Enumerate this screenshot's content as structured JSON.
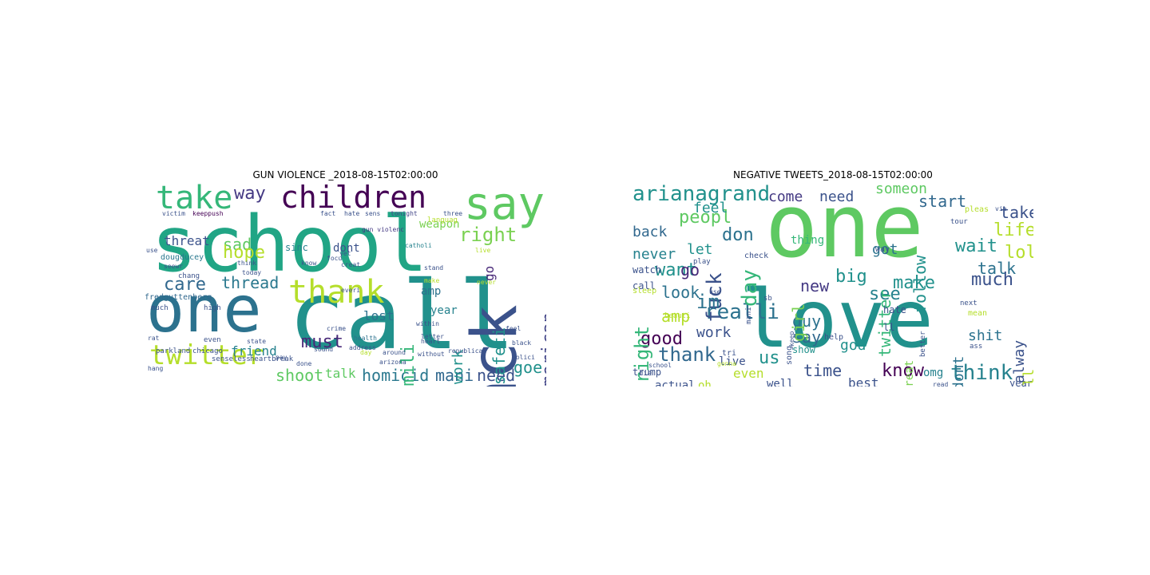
{
  "figure": {
    "panels": [
      {
        "title": "GUN VIOLENCE _2018-08-15T02:00:00",
        "words": [
          {
            "t": "school",
            "c": "#21a585"
          },
          {
            "t": "call",
            "c": "#21918c"
          },
          {
            "t": "one",
            "c": "#2c728e"
          },
          {
            "t": "jack",
            "c": "#3b528b"
          },
          {
            "t": "children",
            "c": "#440154"
          },
          {
            "t": "say",
            "c": "#5ec962"
          },
          {
            "t": "take",
            "c": "#35b779"
          },
          {
            "t": "twitter",
            "c": "#b5de2b"
          },
          {
            "t": "thank",
            "c": "#b5de2b"
          },
          {
            "t": "american",
            "c": "#414487"
          },
          {
            "t": "right",
            "c": "#7ad151"
          },
          {
            "t": "thread",
            "c": "#2a788e"
          },
          {
            "t": "care",
            "c": "#31688e"
          },
          {
            "t": "sad",
            "c": "#5ec962"
          },
          {
            "t": "hope",
            "c": "#b5de2b"
          },
          {
            "t": "way",
            "c": "#443983"
          },
          {
            "t": "threat",
            "c": "#3b528b"
          },
          {
            "t": "must",
            "c": "#482878"
          },
          {
            "t": "homicid",
            "c": "#2a788e"
          },
          {
            "t": "shoot",
            "c": "#5ec962"
          },
          {
            "t": "mani",
            "c": "#31688e"
          },
          {
            "t": "need",
            "c": "#3b528b"
          },
          {
            "t": "goe",
            "c": "#21918c"
          },
          {
            "t": "safeti",
            "c": "#21918c"
          },
          {
            "t": "work",
            "c": "#21918c"
          },
          {
            "t": "famili",
            "c": "#35b779"
          },
          {
            "t": "go",
            "c": "#482878"
          },
          {
            "t": "lost",
            "c": "#2c728e"
          },
          {
            "t": "friend",
            "c": "#26828e"
          },
          {
            "t": "talk",
            "c": "#5ec962"
          },
          {
            "t": "weapon",
            "c": "#7ad151"
          },
          {
            "t": "amp",
            "c": "#2c728e"
          },
          {
            "t": "year",
            "c": "#26828e"
          },
          {
            "t": "dont",
            "c": "#3b528b"
          },
          {
            "t": "sinc",
            "c": "#26828e"
          },
          {
            "t": "fredguttenberg",
            "c": "#31688e"
          },
          {
            "t": "dougducey",
            "c": "#2a788e"
          },
          {
            "t": "chang",
            "c": "#3b528b"
          },
          {
            "t": "victim",
            "c": "#3b528b"
          },
          {
            "t": "keeppush",
            "c": "#440154"
          },
          {
            "t": "tonight",
            "c": "#414487"
          },
          {
            "t": "gun violenc",
            "c": "#443983"
          },
          {
            "t": "focu",
            "c": "#3b528b"
          },
          {
            "t": "catholi",
            "c": "#26828e"
          },
          {
            "t": "crime",
            "c": "#3b528b"
          },
          {
            "t": "health",
            "c": "#2c728e"
          },
          {
            "t": "address",
            "c": "#3b528b"
          },
          {
            "t": "arizona",
            "c": "#3b528b"
          },
          {
            "t": "around",
            "c": "#3b528b"
          },
          {
            "t": "republican",
            "c": "#3b528b"
          },
          {
            "t": "chicago",
            "c": "#3b528b"
          },
          {
            "t": "parkland",
            "c": "#3b528b"
          },
          {
            "t": "heartbreak",
            "c": "#3b528b"
          },
          {
            "t": "senseless",
            "c": "#3b528b"
          },
          {
            "t": "train",
            "c": "#3b528b"
          },
          {
            "t": "feel",
            "c": "#3b528b"
          },
          {
            "t": "black",
            "c": "#3b528b"
          },
          {
            "t": "polici",
            "c": "#3b528b"
          },
          {
            "t": "letter",
            "c": "#3b528b"
          },
          {
            "t": "without",
            "c": "#3b528b"
          },
          {
            "t": "within",
            "c": "#3b528b"
          },
          {
            "t": "stand",
            "c": "#3b528b"
          },
          {
            "t": "today",
            "c": "#3b528b"
          },
          {
            "t": "think",
            "c": "#3b528b"
          },
          {
            "t": "high",
            "c": "#3b528b"
          },
          {
            "t": "even",
            "c": "#3b528b"
          },
          {
            "t": "much",
            "c": "#3b528b"
          },
          {
            "t": "state",
            "c": "#3b528b"
          },
          {
            "t": "sound",
            "c": "#3b528b"
          },
          {
            "t": "done",
            "c": "#3b528b"
          },
          {
            "t": "hate",
            "c": "#3b528b"
          },
          {
            "t": "fact",
            "c": "#3b528b"
          },
          {
            "t": "sens",
            "c": "#3b528b"
          },
          {
            "t": "three",
            "c": "#3b528b"
          },
          {
            "t": "yet",
            "c": "#3b528b"
          },
          {
            "t": "creat",
            "c": "#3b528b"
          },
          {
            "t": "everi",
            "c": "#3b528b"
          },
          {
            "t": "know",
            "c": "#3b528b"
          },
          {
            "t": "seewr",
            "c": "#3b528b"
          },
          {
            "t": "use",
            "c": "#3b528b"
          },
          {
            "t": "rat",
            "c": "#3b528b"
          },
          {
            "t": "hang",
            "c": "#3b528b"
          },
          {
            "t": "pay",
            "c": "#3b528b"
          },
          {
            "t": "heart",
            "c": "#3b528b"
          },
          {
            "t": "day",
            "c": "#b5de2b"
          },
          {
            "t": "languag",
            "c": "#b5de2b"
          },
          {
            "t": "live",
            "c": "#b5de2b"
          },
          {
            "t": "make",
            "c": "#b5de2b"
          },
          {
            "t": "never",
            "c": "#b5de2b"
          }
        ]
      },
      {
        "title": "NEGATIVE TWEETS_2018-08-15T02:00:00",
        "words": [
          {
            "t": "love",
            "c": "#21918c"
          },
          {
            "t": "one",
            "c": "#5ec962"
          },
          {
            "t": "arianagrand",
            "c": "#21918c"
          },
          {
            "t": "realli",
            "c": "#2c728e"
          },
          {
            "t": "thank",
            "c": "#31688e"
          },
          {
            "t": "good",
            "c": "#440154"
          },
          {
            "t": "amp",
            "c": "#b5de2b"
          },
          {
            "t": "fuck",
            "c": "#3b528b"
          },
          {
            "t": "day",
            "c": "#35b779"
          },
          {
            "t": "peopl",
            "c": "#5ec962"
          },
          {
            "t": "feel",
            "c": "#21918c"
          },
          {
            "t": "back",
            "c": "#31688e"
          },
          {
            "t": "never",
            "c": "#26828e"
          },
          {
            "t": "want",
            "c": "#21918c"
          },
          {
            "t": "look",
            "c": "#2c728e"
          },
          {
            "t": "right",
            "c": "#35b779"
          },
          {
            "t": "go",
            "c": "#482878"
          },
          {
            "t": "im",
            "c": "#2c728e"
          },
          {
            "t": "let",
            "c": "#21918c"
          },
          {
            "t": "don",
            "c": "#2c728e"
          },
          {
            "t": "come",
            "c": "#443983"
          },
          {
            "t": "need",
            "c": "#3b528b"
          },
          {
            "t": "someon",
            "c": "#5ec962"
          },
          {
            "t": "start",
            "c": "#31688e"
          },
          {
            "t": "take",
            "c": "#3b528b"
          },
          {
            "t": "life",
            "c": "#b5de2b"
          },
          {
            "t": "lol",
            "c": "#b5de2b"
          },
          {
            "t": "wait",
            "c": "#21918c"
          },
          {
            "t": "talk",
            "c": "#2c728e"
          },
          {
            "t": "much",
            "c": "#3b528b"
          },
          {
            "t": "make",
            "c": "#21918c"
          },
          {
            "t": "big",
            "c": "#21918c"
          },
          {
            "t": "see",
            "c": "#26828e"
          },
          {
            "t": "new",
            "c": "#443983"
          },
          {
            "t": "guy",
            "c": "#2c728e"
          },
          {
            "t": "say",
            "c": "#31688e"
          },
          {
            "t": "us",
            "c": "#21918c"
          },
          {
            "t": "time",
            "c": "#3b528b"
          },
          {
            "t": "know",
            "c": "#440154"
          },
          {
            "t": "best",
            "c": "#3b528b"
          },
          {
            "t": "think",
            "c": "#26828e"
          },
          {
            "t": "year",
            "c": "#3b528b"
          },
          {
            "t": "shit",
            "c": "#2c728e"
          },
          {
            "t": "still",
            "c": "#b5de2b"
          },
          {
            "t": "alway",
            "c": "#3b528b"
          },
          {
            "t": "dont",
            "c": "#2c728e"
          },
          {
            "t": "follow",
            "c": "#21918c"
          },
          {
            "t": "twitter",
            "c": "#35b779"
          },
          {
            "t": "got",
            "c": "#2c728e"
          },
          {
            "t": "girl",
            "c": "#7ad151"
          },
          {
            "t": "work",
            "c": "#3b528b"
          },
          {
            "t": "even",
            "c": "#b5de2b"
          },
          {
            "t": "actual",
            "c": "#3b528b"
          },
          {
            "t": "oh",
            "c": "#b5de2b"
          },
          {
            "t": "well",
            "c": "#3b528b"
          },
          {
            "t": "god",
            "c": "#21918c"
          },
          {
            "t": "omg",
            "c": "#26828e"
          },
          {
            "t": "great",
            "c": "#7ad151"
          },
          {
            "t": "hate",
            "c": "#3b528b"
          },
          {
            "t": "ll",
            "c": "#3b528b"
          },
          {
            "t": "trump",
            "c": "#3b528b"
          },
          {
            "t": "live",
            "c": "#3b528b"
          },
          {
            "t": "watch",
            "c": "#3b528b"
          },
          {
            "t": "call",
            "c": "#3b528b"
          },
          {
            "t": "show",
            "c": "#21918c"
          },
          {
            "t": "thing",
            "c": "#35b779"
          },
          {
            "t": "way",
            "c": "#3b528b"
          },
          {
            "t": "sb",
            "c": "#3b528b"
          },
          {
            "t": "mani",
            "c": "#3b528b"
          },
          {
            "t": "check",
            "c": "#3b528b"
          },
          {
            "t": "play",
            "c": "#3b528b"
          },
          {
            "t": "sleep",
            "c": "#b5de2b"
          },
          {
            "t": "school",
            "c": "#3b528b"
          },
          {
            "t": "help",
            "c": "#3b528b"
          },
          {
            "t": "keep",
            "c": "#3b528b"
          },
          {
            "t": "song",
            "c": "#3b528b"
          },
          {
            "t": "better",
            "c": "#3b528b"
          },
          {
            "t": "next",
            "c": "#3b528b"
          },
          {
            "t": "read",
            "c": "#3b528b"
          },
          {
            "t": "tweet",
            "c": "#3b528b"
          },
          {
            "t": "care",
            "c": "#3b528b"
          },
          {
            "t": "mean",
            "c": "#b5de2b"
          },
          {
            "t": "ass",
            "c": "#3b528b"
          },
          {
            "t": "pleas",
            "c": "#b5de2b"
          },
          {
            "t": "via",
            "c": "#3b528b"
          },
          {
            "t": "tour",
            "c": "#3b528b"
          },
          {
            "t": "die",
            "c": "#3b528b"
          },
          {
            "t": "tri",
            "c": "#3b528b"
          },
          {
            "t": "gonna",
            "c": "#b5de2b"
          },
          {
            "t": "use",
            "c": "#3b528b"
          },
          {
            "t": "beauti",
            "c": "#b5de2b"
          }
        ]
      }
    ]
  }
}
